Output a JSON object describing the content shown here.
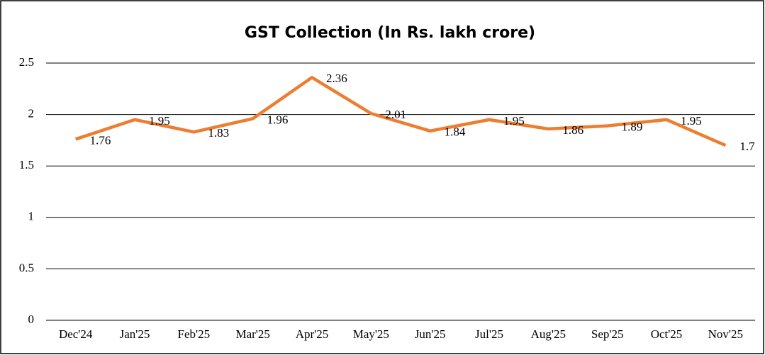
{
  "chart_data": {
    "type": "line",
    "title": "GST Collection (In Rs. lakh crore)",
    "categories": [
      "Dec'24",
      "Jan'25",
      "Feb'25",
      "Mar'25",
      "Apr'25",
      "May'25",
      "Jun'25",
      "Jul'25",
      "Aug'25",
      "Sep'25",
      "Oct'25",
      "Nov'25"
    ],
    "values": [
      1.76,
      1.95,
      1.83,
      1.96,
      2.36,
      2.01,
      1.84,
      1.95,
      1.86,
      1.89,
      1.95,
      1.7
    ],
    "color": "#ed7d31",
    "ylim": [
      0,
      2.5
    ],
    "yticks": [
      0,
      0.5,
      1,
      1.5,
      2,
      2.5
    ],
    "grid": true
  }
}
